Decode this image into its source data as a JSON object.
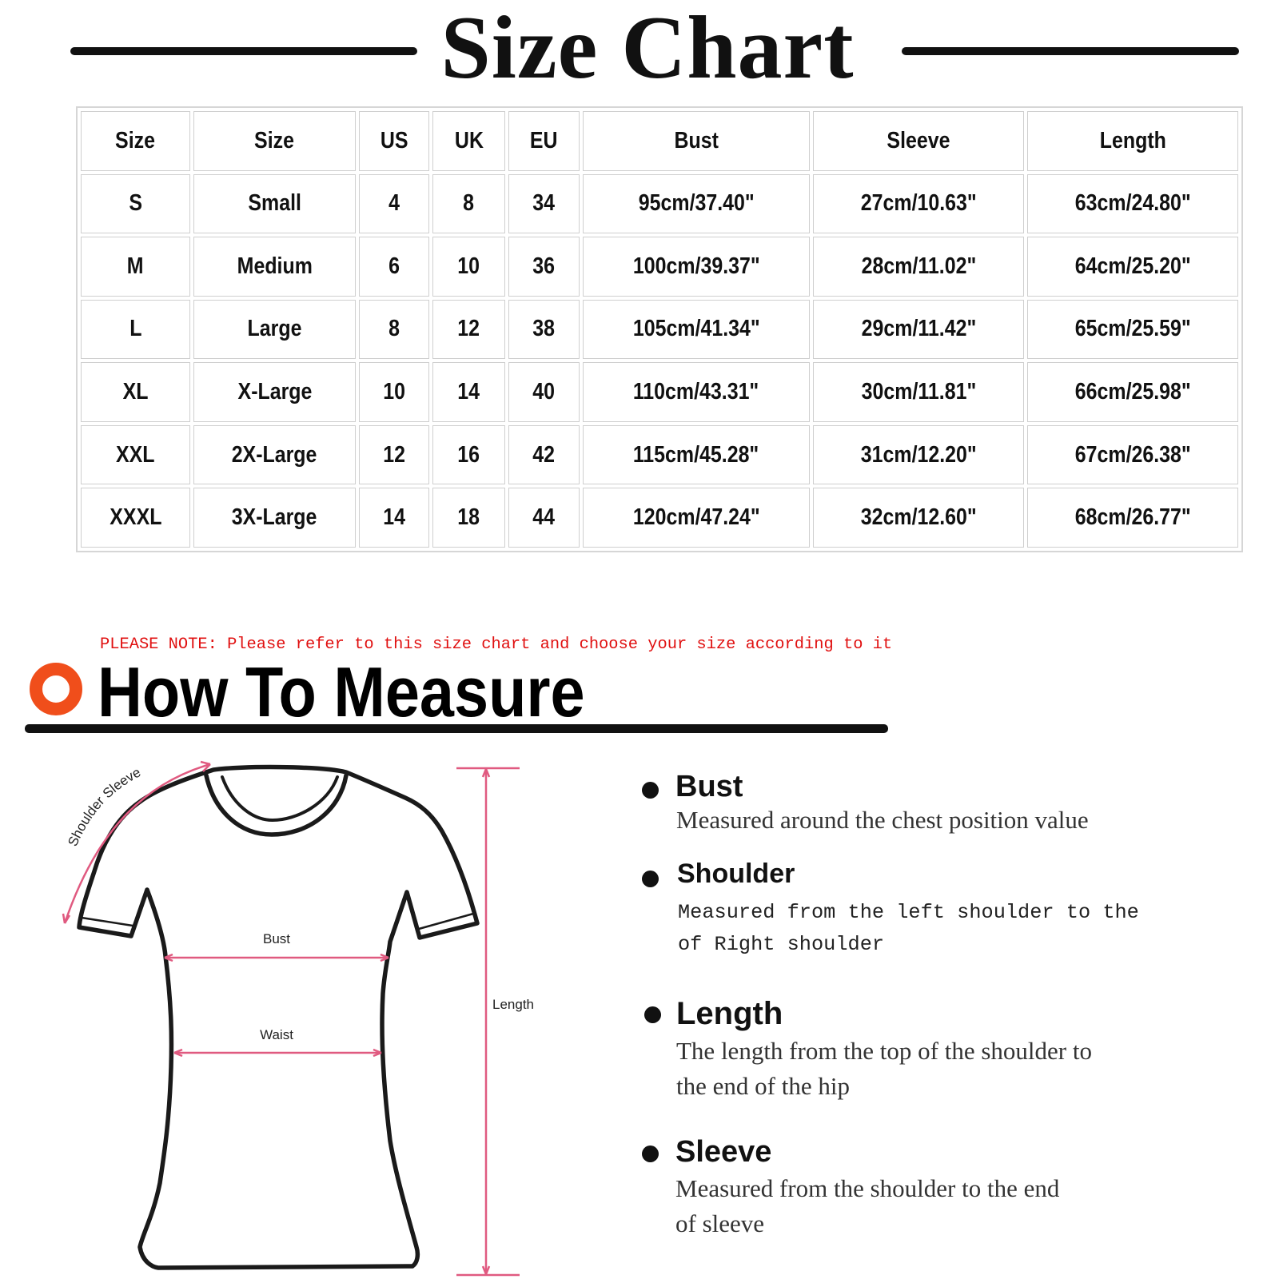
{
  "size_chart": {
    "title": "Size Chart",
    "columns": [
      "Size",
      "Size",
      "US",
      "UK",
      "EU",
      "Bust",
      "Sleeve",
      "Length"
    ],
    "rows": [
      [
        "S",
        "Small",
        "4",
        "8",
        "34",
        "95cm/37.40\"",
        "27cm/10.63\"",
        "63cm/24.80\""
      ],
      [
        "M",
        "Medium",
        "6",
        "10",
        "36",
        "100cm/39.37\"",
        "28cm/11.02\"",
        "64cm/25.20\""
      ],
      [
        "L",
        "Large",
        "8",
        "12",
        "38",
        "105cm/41.34\"",
        "29cm/11.42\"",
        "65cm/25.59\""
      ],
      [
        "XL",
        "X-Large",
        "10",
        "14",
        "40",
        "110cm/43.31\"",
        "30cm/11.81\"",
        "66cm/25.98\""
      ],
      [
        "XXL",
        "2X-Large",
        "12",
        "16",
        "42",
        "115cm/45.28\"",
        "31cm/12.20\"",
        "67cm/26.38\""
      ],
      [
        "XXXL",
        "3X-Large",
        "14",
        "18",
        "44",
        "120cm/47.24\"",
        "32cm/12.60\"",
        "68cm/26.77\""
      ]
    ]
  },
  "note": "PLEASE NOTE: Please refer to this size chart and choose your size according to it",
  "how_to_measure": {
    "title": "How To Measure",
    "accent_color": "#f04e1b",
    "diagram_labels": {
      "shoulder_sleeve": "Shoulder Sleeve",
      "bust": "Bust",
      "waist": "Waist",
      "length": "Length"
    },
    "items": [
      {
        "heading": "Bust",
        "lines": [
          "Measured around the chest position value"
        ]
      },
      {
        "heading": "Shoulder",
        "lines": [
          "Measured from the left shoulder to the",
          "of Right shoulder"
        ]
      },
      {
        "heading": "Length",
        "lines": [
          "The length from the top of the shoulder to",
          "the end of the hip"
        ]
      },
      {
        "heading": "Sleeve",
        "lines": [
          "Measured from the shoulder to the end",
          "of sleeve"
        ]
      }
    ]
  }
}
